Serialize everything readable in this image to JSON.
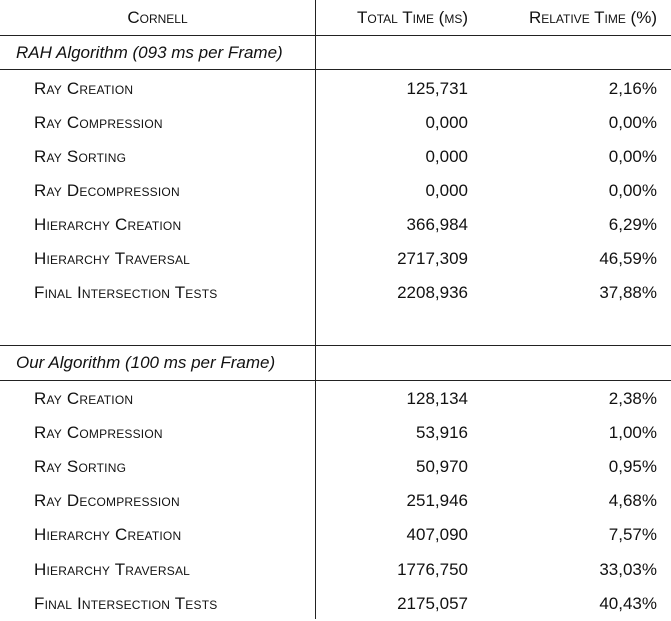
{
  "header": {
    "scene": "Cornell",
    "total_time": "Total Time (ms)",
    "relative_time": "Relative Time (%)"
  },
  "sections": [
    {
      "title": "RAH Algorithm (093 ms per Frame)",
      "rows": [
        {
          "label": "Ray Creation",
          "total": "125,731",
          "relative": "2,16%"
        },
        {
          "label": "Ray Compression",
          "total": "0,000",
          "relative": "0,00%"
        },
        {
          "label": "Ray Sorting",
          "total": "0,000",
          "relative": "0,00%"
        },
        {
          "label": "Ray Decompression",
          "total": "0,000",
          "relative": "0,00%"
        },
        {
          "label": "Hierarchy Creation",
          "total": "366,984",
          "relative": "6,29%"
        },
        {
          "label": "Hierarchy Traversal",
          "total": "2717,309",
          "relative": "46,59%"
        },
        {
          "label": "Final Intersection Tests",
          "total": "2208,936",
          "relative": "37,88%"
        }
      ]
    },
    {
      "title": "Our Algorithm (100 ms per Frame)",
      "rows": [
        {
          "label": "Ray Creation",
          "total": "128,134",
          "relative": "2,38%"
        },
        {
          "label": "Ray Compression",
          "total": "53,916",
          "relative": "1,00%"
        },
        {
          "label": "Ray Sorting",
          "total": "50,970",
          "relative": "0,95%"
        },
        {
          "label": "Ray Decompression",
          "total": "251,946",
          "relative": "4,68%"
        },
        {
          "label": "Hierarchy Creation",
          "total": "407,090",
          "relative": "7,57%"
        },
        {
          "label": "Hierarchy Traversal",
          "total": "1776,750",
          "relative": "33,03%"
        },
        {
          "label": "Final Intersection Tests",
          "total": "2175,057",
          "relative": "40,43%"
        }
      ]
    }
  ]
}
